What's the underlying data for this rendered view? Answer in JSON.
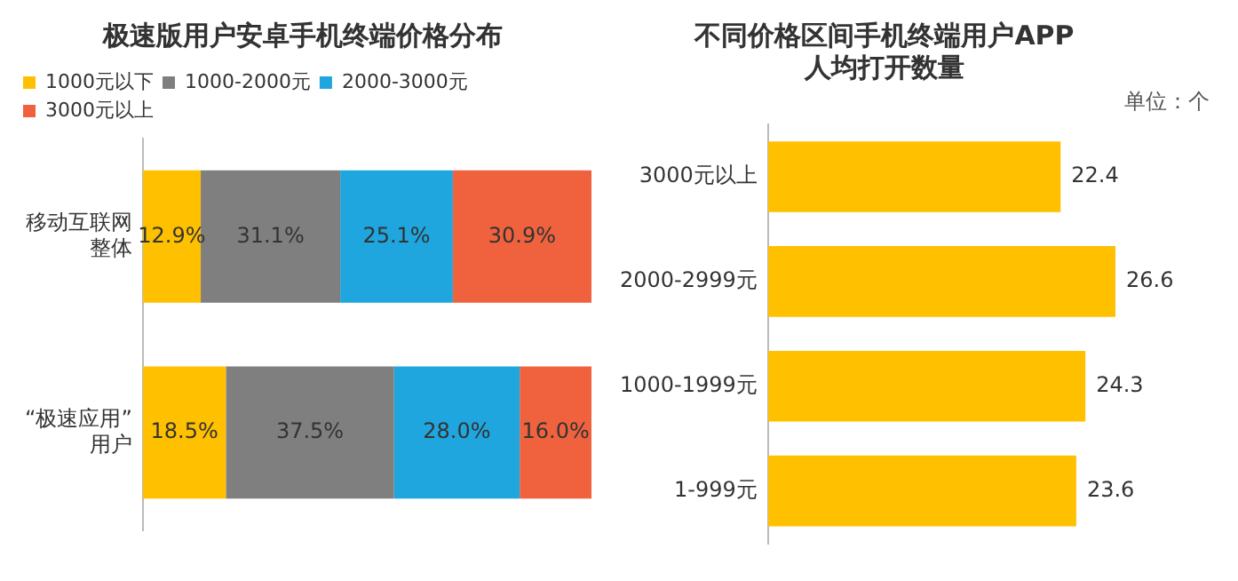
{
  "chart_data": [
    {
      "type": "bar",
      "orientation": "horizontal",
      "stacked": true,
      "title": "极速版用户安卓手机终端价格分布",
      "categories": [
        "移动互联网整体",
        "“极速应用”用户"
      ],
      "xlim": [
        0,
        100
      ],
      "tick_labels": "y",
      "grid": false,
      "legend": "top left",
      "series": [
        {
          "name": "1000元以下",
          "color": "#ffc000",
          "values": [
            12.9,
            18.5
          ],
          "value_labels": [
            "12.9%",
            "18.5%"
          ]
        },
        {
          "name": "1000-2000元",
          "color": "#7f7f7f",
          "values": [
            31.1,
            37.5
          ],
          "value_labels": [
            "31.1%",
            "37.5%"
          ]
        },
        {
          "name": "2000-3000元",
          "color": "#1fa6df",
          "values": [
            25.1,
            28.0
          ],
          "value_labels": [
            "25.1%",
            "28.0%"
          ]
        },
        {
          "name": "3000元以上",
          "color": "#f0623e",
          "values": [
            30.9,
            16.0
          ],
          "value_labels": [
            "30.9%",
            "16.0%"
          ]
        }
      ]
    },
    {
      "type": "bar",
      "orientation": "horizontal",
      "title": "不同价格区间手机终端用户APP\n人均打开数量",
      "annotations": [
        "单位：个"
      ],
      "categories": [
        "3000元以上",
        "2000-2999元",
        "1000-1999元",
        "1-999元"
      ],
      "values": [
        22.4,
        26.6,
        24.3,
        23.6
      ],
      "color": "#ffc000",
      "data_labels": true,
      "tick_labels": "y",
      "grid": false
    }
  ]
}
